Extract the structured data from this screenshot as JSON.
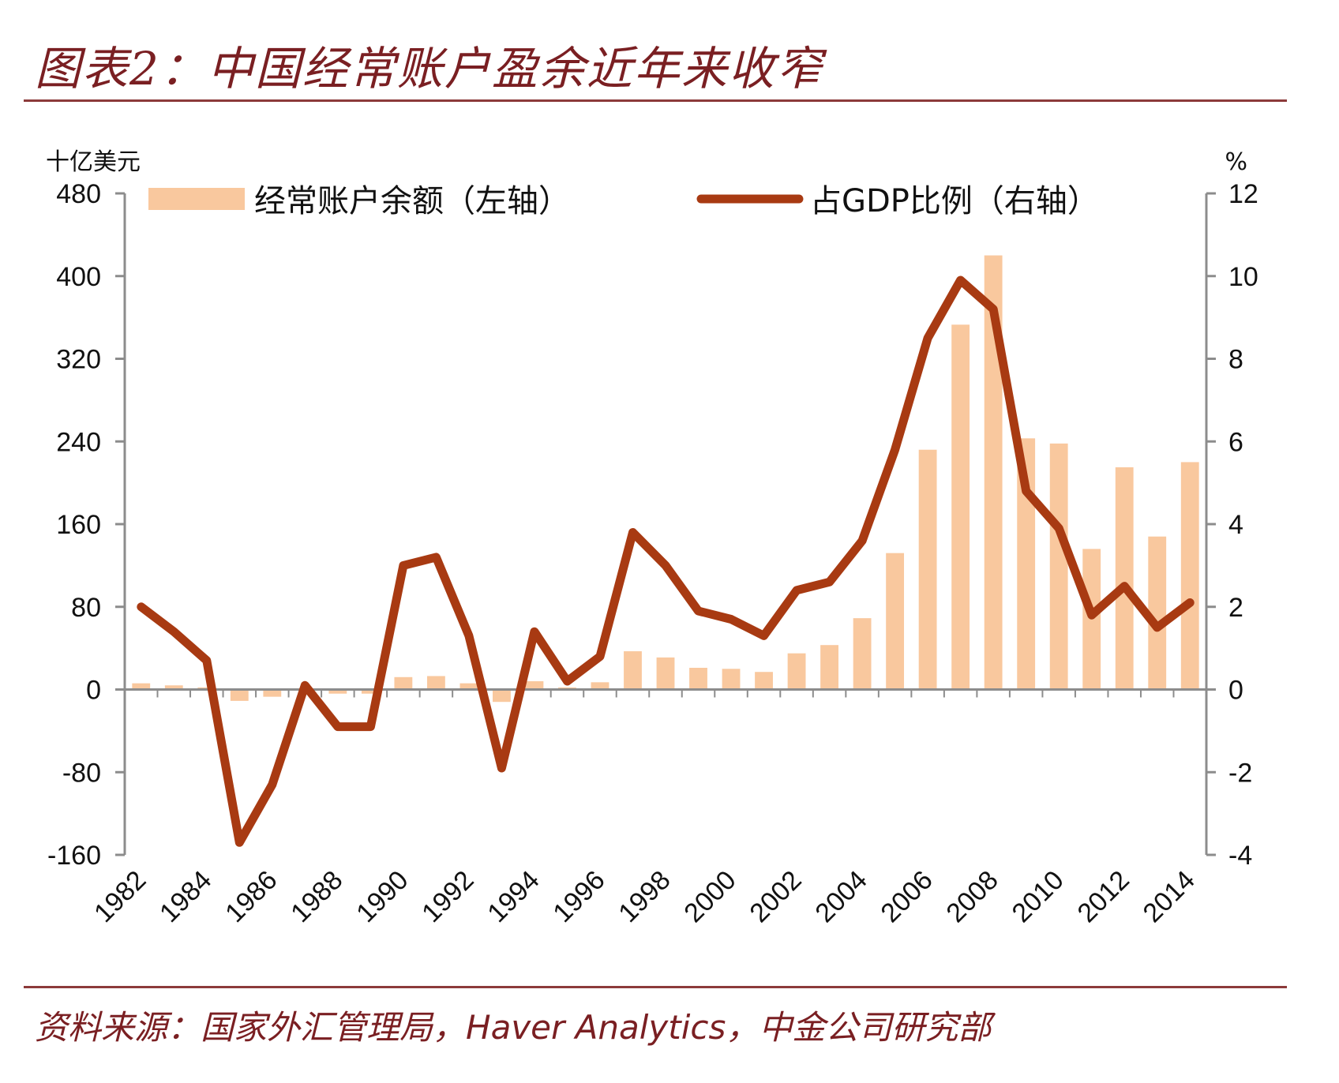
{
  "title": "图表2：中国经常账户盈余近年来收窄",
  "source": "资料来源：国家外汇管理局，Haver Analytics，中金公司研究部",
  "colors": {
    "bar": "#f9c89e",
    "line": "#a83a12",
    "title": "#7a1f22",
    "axis": "#8c8c8c"
  },
  "chart_data": {
    "type": "bar+line",
    "title": "图表2：中国经常账户盈余近年来收窄",
    "left_unit": "十亿美元",
    "right_unit": "%",
    "categories": [
      "1982",
      "1983",
      "1984",
      "1985",
      "1986",
      "1987",
      "1988",
      "1989",
      "1990",
      "1991",
      "1992",
      "1993",
      "1994",
      "1995",
      "1996",
      "1997",
      "1998",
      "1999",
      "2000",
      "2001",
      "2002",
      "2003",
      "2004",
      "2005",
      "2006",
      "2007",
      "2008",
      "2009",
      "2010",
      "2011",
      "2012",
      "2013",
      "2014"
    ],
    "x_tick_labels": [
      "1982",
      "1984",
      "1986",
      "1988",
      "1990",
      "1992",
      "1994",
      "1996",
      "1998",
      "2000",
      "2002",
      "2004",
      "2006",
      "2008",
      "2010",
      "2012",
      "2014"
    ],
    "left_axis": {
      "range": [
        -160,
        480
      ],
      "ticks": [
        "480",
        "400",
        "320",
        "240",
        "160",
        "80",
        "0",
        "-80",
        "-160"
      ],
      "tick_values": [
        480,
        400,
        320,
        240,
        160,
        80,
        0,
        -80,
        -160
      ]
    },
    "right_axis": {
      "range": [
        -4,
        12
      ],
      "ticks": [
        "12",
        "10",
        "8",
        "6",
        "4",
        "2",
        "0",
        "-2",
        "-4"
      ],
      "tick_values": [
        12,
        10,
        8,
        6,
        4,
        2,
        0,
        -2,
        -4
      ]
    },
    "series": [
      {
        "name": "经常账户余额（左轴）",
        "type": "bar",
        "axis": "left",
        "values": [
          6,
          4,
          2,
          -11,
          -7,
          0,
          -4,
          -4,
          12,
          13,
          6,
          -12,
          8,
          2,
          7,
          37,
          31,
          21,
          20,
          17,
          35,
          43,
          69,
          132,
          232,
          353,
          420,
          243,
          238,
          136,
          215,
          148,
          220
        ]
      },
      {
        "name": "占GDP比例（右轴）",
        "type": "line",
        "axis": "right",
        "values": [
          2.0,
          1.4,
          0.7,
          -3.7,
          -2.3,
          0.1,
          -0.9,
          -0.9,
          3.0,
          3.2,
          1.3,
          -1.9,
          1.4,
          0.2,
          0.8,
          3.8,
          3.0,
          1.9,
          1.7,
          1.3,
          2.4,
          2.6,
          3.6,
          5.8,
          8.5,
          9.9,
          9.2,
          4.8,
          3.9,
          1.8,
          2.5,
          1.5,
          2.1
        ]
      }
    ],
    "legend": [
      "经常账户余额（左轴）",
      "占GDP比例（右轴）"
    ],
    "legend_position": "top"
  }
}
